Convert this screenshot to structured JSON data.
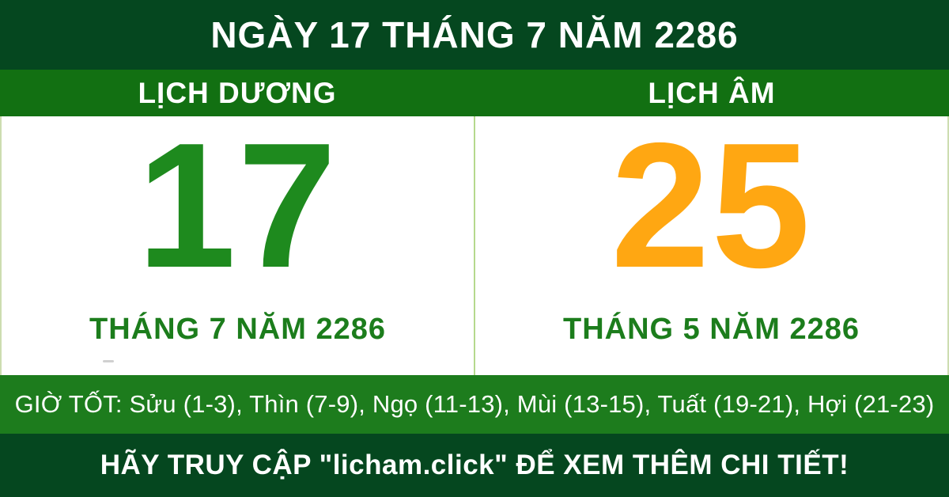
{
  "header": {
    "title": "NGÀY 17 THÁNG 7 NĂM 2286"
  },
  "columns": {
    "solar": {
      "label": "LỊCH DƯƠNG",
      "day": "17",
      "month_year": "THÁNG 7 NĂM 2286"
    },
    "lunar": {
      "label": "LỊCH ÂM",
      "day": "25",
      "month_year": "THÁNG 5 NĂM 2286"
    }
  },
  "good_hours": {
    "text": "GIỜ TỐT: Sửu (1-3), Thìn (7-9), Ngọ (11-13), Mùi (13-15), Tuất (19-21), Hợi (21-23)"
  },
  "footer": {
    "text": "HÃY TRUY CẬP \"licham.click\" ĐỂ XEM THÊM CHI TIẾT!"
  },
  "colors": {
    "dark_green": "#05471f",
    "mid_green": "#127012",
    "strip_green": "#1d7c1d",
    "day_solar_green": "#1e8a1e",
    "month_green": "#1c7d1c",
    "lunar_orange": "#ffa712",
    "divider": "#b5d98d"
  }
}
